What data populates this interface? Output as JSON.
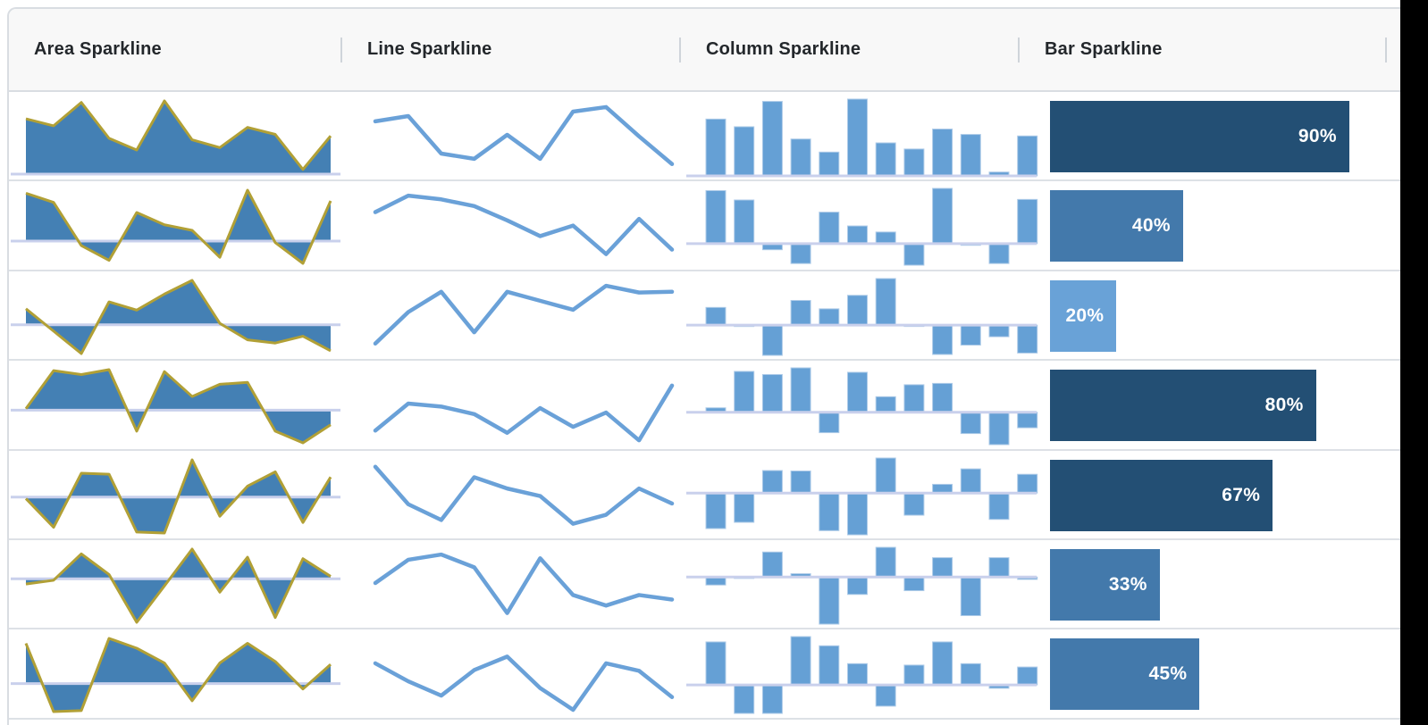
{
  "header": {
    "columns": [
      {
        "label": "Area Sparkline"
      },
      {
        "label": "Line Sparkline"
      },
      {
        "label": "Column Sparkline"
      },
      {
        "label": "Bar Sparkline"
      }
    ]
  },
  "colors": {
    "area_fill": "#4480b4",
    "area_stroke": "#b1a036",
    "line_stroke": "#6aa1d8",
    "column_fill": "#65a0d5",
    "column_stroke": "#aecbe8",
    "axis_line": "#c9d0ec",
    "bar_navy": "#234f74",
    "bar_medium": "#4379ab",
    "bar_light": "#69a2d7",
    "header_bg": "#f8f8f8",
    "row_border": "#dde1e6"
  },
  "chart_data": [
    {
      "type_set": [
        "area",
        "line",
        "column",
        "bar"
      ],
      "area": [
        71,
        62,
        92,
        46,
        31,
        94,
        44,
        34,
        60,
        51,
        6,
        49
      ],
      "line": [
        68,
        75,
        25,
        18,
        50,
        18,
        81,
        87,
        48,
        11
      ],
      "column": [
        74,
        64,
        97,
        48,
        31,
        100,
        43,
        35,
        61,
        54,
        5,
        52
      ],
      "bar": {
        "value": 90,
        "label": "90%",
        "tone": "bar_navy"
      }
    },
    {
      "area": [
        94,
        76,
        -9,
        -38,
        56,
        32,
        21,
        -32,
        100,
        -3,
        -44,
        79
      ],
      "line": [
        66,
        88,
        83,
        74,
        55,
        34,
        48,
        10,
        57,
        16
      ],
      "column": [
        96,
        79,
        -11,
        -36,
        57,
        32,
        21,
        -39,
        100,
        -3,
        -36,
        80
      ],
      "bar": {
        "value": 40,
        "label": "40%",
        "tone": "bar_medium"
      }
    },
    {
      "area": [
        35,
        -14,
        -63,
        50,
        32,
        67,
        97,
        3,
        -33,
        -40,
        -25,
        -57
      ],
      "line": [
        11,
        53,
        80,
        26,
        80,
        68,
        56,
        88,
        79,
        80
      ],
      "column": [
        38,
        -3,
        -65,
        53,
        35,
        64,
        100,
        0,
        -63,
        -43,
        -25,
        -60
      ],
      "bar": {
        "value": 20,
        "label": "20%",
        "tone": "bar_light"
      }
    },
    {
      "area": [
        3,
        81,
        73,
        83,
        -43,
        79,
        28,
        53,
        57,
        -43,
        -67,
        -30
      ],
      "line": [
        14,
        50,
        46,
        36,
        11,
        44,
        19,
        38,
        1,
        74
      ],
      "column": [
        10,
        92,
        85,
        100,
        -46,
        90,
        35,
        62,
        65,
        -48,
        -73,
        -35
      ],
      "bar": {
        "value": 80,
        "label": "80%",
        "tone": "bar_navy"
      }
    },
    {
      "area": [
        -3,
        -63,
        50,
        48,
        -73,
        -75,
        78,
        -40,
        23,
        53,
        -53,
        42
      ],
      "line": [
        86,
        36,
        15,
        72,
        57,
        47,
        10,
        22,
        57,
        37
      ],
      "column": [
        -85,
        -70,
        54,
        53,
        -90,
        -100,
        84,
        -53,
        21,
        58,
        -63,
        45
      ],
      "bar": {
        "value": 67,
        "label": "67%",
        "tone": "bar_navy"
      }
    },
    {
      "area": [
        -11,
        -3,
        52,
        9,
        -91,
        -15,
        62,
        -28,
        45,
        -81,
        42,
        5
      ],
      "line": [
        50,
        81,
        88,
        71,
        10,
        83,
        34,
        20,
        34,
        28
      ],
      "column": [
        -17,
        -3,
        53,
        7,
        -100,
        -37,
        63,
        -29,
        41,
        -82,
        41,
        -5
      ],
      "bar": {
        "value": 33,
        "label": "33%",
        "tone": "bar_medium"
      }
    },
    {
      "area": [
        82,
        -57,
        -55,
        92,
        72,
        42,
        -35,
        42,
        82,
        45,
        -11,
        39
      ],
      "line": [
        62,
        38,
        19,
        53,
        71,
        29,
        0,
        62,
        52,
        17
      ],
      "column": [
        89,
        -59,
        -59,
        100,
        81,
        44,
        -44,
        41,
        89,
        44,
        -7,
        37
      ],
      "bar": {
        "value": 45,
        "label": "45%",
        "tone": "bar_medium"
      }
    }
  ]
}
